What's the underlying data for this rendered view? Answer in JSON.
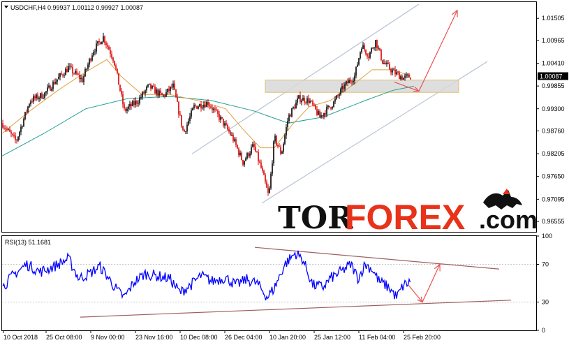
{
  "chart_data": [
    {
      "type": "candlestick",
      "title": "USDCHF,H4  0.99937 1.00112 0.99927 1.00087",
      "symbol": "USDCHF",
      "timeframe": "H4",
      "ohlc_display": "0.99937 1.00112 0.99927 1.00087",
      "current_price": "1.00087",
      "ylim": [
        0.963,
        1.019
      ],
      "price_ticks": [
        "1.01505",
        "1.00965",
        "1.00410",
        "0.99855",
        "0.99300",
        "0.98760",
        "0.98205",
        "0.97650",
        "0.97095",
        "0.96555"
      ],
      "x_ticks": [
        "10 Oct 2018",
        "25 Oct 08:00",
        "9 Nov 00:00",
        "23 Nov 16:00",
        "10 Dec 08:00",
        "26 Dec 04:00",
        "10 Jan 20:00",
        "25 Jan 12:00",
        "11 Feb 04:00",
        "25 Feb 20:00"
      ],
      "anchors": [
        [
          0,
          0.9895
        ],
        [
          20,
          0.985
        ],
        [
          40,
          0.995
        ],
        [
          60,
          0.9965
        ],
        [
          75,
          0.9995
        ],
        [
          95,
          1.003
        ],
        [
          115,
          1.0
        ],
        [
          130,
          1.007
        ],
        [
          145,
          1.0105
        ],
        [
          160,
          1.005
        ],
        [
          175,
          0.9925
        ],
        [
          195,
          0.995
        ],
        [
          210,
          0.9985
        ],
        [
          230,
          0.996
        ],
        [
          245,
          0.9985
        ],
        [
          260,
          0.987
        ],
        [
          275,
          0.9935
        ],
        [
          295,
          0.9945
        ],
        [
          315,
          0.99
        ],
        [
          330,
          0.986
        ],
        [
          345,
          0.98
        ],
        [
          360,
          0.984
        ],
        [
          372,
          0.978
        ],
        [
          382,
          0.9715
        ],
        [
          390,
          0.986
        ],
        [
          400,
          0.982
        ],
        [
          410,
          0.991
        ],
        [
          425,
          0.9955
        ],
        [
          440,
          0.995
        ],
        [
          455,
          0.991
        ],
        [
          475,
          0.9945
        ],
        [
          490,
          0.9985
        ],
        [
          505,
          1.001
        ],
        [
          515,
          1.0085
        ],
        [
          525,
          1.006
        ],
        [
          535,
          1.0095
        ],
        [
          545,
          1.0045
        ],
        [
          560,
          1.002
        ],
        [
          575,
          1.0005
        ],
        [
          585,
          1.0009
        ]
      ],
      "ma_slow": [
        [
          0,
          0.9815
        ],
        [
          60,
          0.987
        ],
        [
          120,
          0.993
        ],
        [
          180,
          0.9955
        ],
        [
          240,
          0.996
        ],
        [
          300,
          0.995
        ],
        [
          360,
          0.9925
        ],
        [
          410,
          0.9895
        ],
        [
          460,
          0.991
        ],
        [
          520,
          0.995
        ],
        [
          560,
          0.9975
        ],
        [
          590,
          0.9985
        ]
      ],
      "ma_fast": [
        [
          0,
          0.987
        ],
        [
          40,
          0.9925
        ],
        [
          80,
          0.9975
        ],
        [
          120,
          1.002
        ],
        [
          150,
          1.005
        ],
        [
          170,
          1.001
        ],
        [
          200,
          0.9965
        ],
        [
          240,
          0.9965
        ],
        [
          280,
          0.995
        ],
        [
          320,
          0.993
        ],
        [
          345,
          0.988
        ],
        [
          370,
          0.9835
        ],
        [
          390,
          0.9835
        ],
        [
          415,
          0.989
        ],
        [
          440,
          0.9935
        ],
        [
          470,
          0.995
        ],
        [
          500,
          0.9985
        ],
        [
          530,
          1.0025
        ],
        [
          560,
          1.0025
        ],
        [
          585,
          1.001
        ]
      ],
      "channel": {
        "upper": [
          [
            275,
            0.982
          ],
          [
            600,
            1.0185
          ]
        ],
        "lower": [
          [
            375,
            0.97
          ],
          [
            698,
            1.0045
          ]
        ]
      },
      "zone": {
        "x0": 380,
        "x1": 657,
        "y_top": 1.0,
        "y_bottom": 0.997
      },
      "forecast": [
        [
          565,
          0.9995
        ],
        [
          600,
          0.9973
        ],
        [
          655,
          1.017
        ]
      ]
    },
    {
      "type": "line",
      "title": "RSI(13) 51.1681",
      "indicator": "RSI(13)",
      "value": "51.1681",
      "ylim": [
        0,
        100
      ],
      "ticks": [
        "100",
        "70",
        "30",
        "0"
      ],
      "anchors": [
        [
          0,
          45
        ],
        [
          15,
          58
        ],
        [
          35,
          70
        ],
        [
          55,
          62
        ],
        [
          75,
          68
        ],
        [
          95,
          76
        ],
        [
          110,
          55
        ],
        [
          125,
          60
        ],
        [
          140,
          68
        ],
        [
          150,
          58
        ],
        [
          165,
          42
        ],
        [
          175,
          35
        ],
        [
          190,
          52
        ],
        [
          205,
          60
        ],
        [
          220,
          58
        ],
        [
          240,
          55
        ],
        [
          255,
          40
        ],
        [
          270,
          48
        ],
        [
          285,
          58
        ],
        [
          300,
          52
        ],
        [
          320,
          56
        ],
        [
          335,
          48
        ],
        [
          350,
          54
        ],
        [
          365,
          50
        ],
        [
          380,
          35
        ],
        [
          390,
          45
        ],
        [
          405,
          70
        ],
        [
          420,
          82
        ],
        [
          430,
          76
        ],
        [
          445,
          48
        ],
        [
          460,
          46
        ],
        [
          470,
          55
        ],
        [
          485,
          62
        ],
        [
          500,
          70
        ],
        [
          510,
          55
        ],
        [
          520,
          70
        ],
        [
          530,
          65
        ],
        [
          540,
          52
        ],
        [
          555,
          45
        ],
        [
          565,
          35
        ],
        [
          575,
          48
        ],
        [
          585,
          51
        ]
      ],
      "trend_upper": [
        [
          365,
          88
        ],
        [
          715,
          65
        ]
      ],
      "trend_lower": [
        [
          115,
          14
        ],
        [
          732,
          32
        ]
      ],
      "forecast": [
        [
          585,
          48
        ],
        [
          605,
          30
        ],
        [
          630,
          70
        ]
      ]
    }
  ],
  "watermark": {
    "part1": "TOR",
    "part2": "FOREX",
    "part3": ".com"
  },
  "colors": {
    "bull": "#000000",
    "bear": "#d90000",
    "ma_fast": "#e0a040",
    "ma_slow": "#20a090",
    "channel": "#b8c4d4",
    "rsi": "#0000ff",
    "trend": "#a06060",
    "forecast": "#ee5050",
    "zone_fill": "#d8d8d8",
    "zone_border": "#e0c070"
  }
}
